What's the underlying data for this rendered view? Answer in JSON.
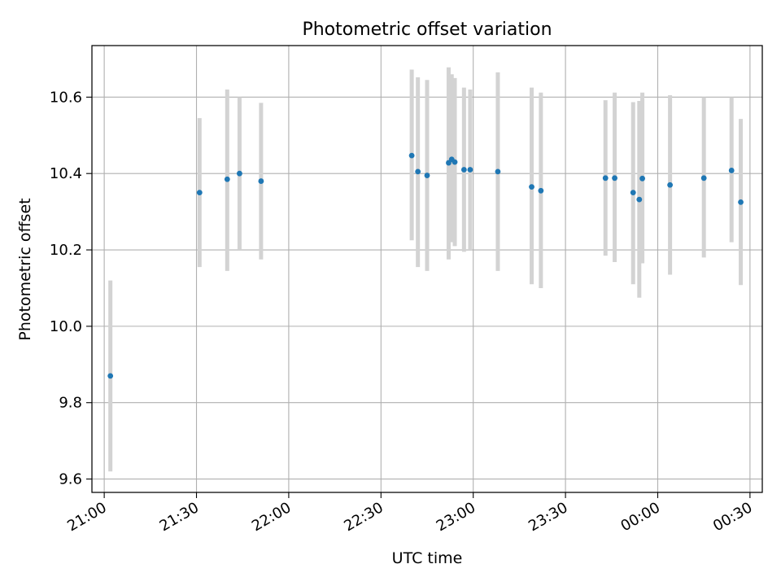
{
  "chart_data": {
    "type": "scatter",
    "title": "Photometric offset variation",
    "xlabel": "UTC time",
    "ylabel": "Photometric offset",
    "x_axis": {
      "kind": "time",
      "range": [
        "20:56",
        "00:34"
      ],
      "ticks": [
        "21:00",
        "21:30",
        "22:00",
        "22:30",
        "23:00",
        "23:30",
        "00:00",
        "00:30"
      ]
    },
    "y_axis": {
      "range": [
        9.565,
        10.735
      ],
      "ticks": [
        9.6,
        9.8,
        10.0,
        10.2,
        10.4,
        10.6
      ],
      "tick_labels": [
        "9.6",
        "9.8",
        "10.0",
        "10.2",
        "10.4",
        "10.6"
      ]
    },
    "grid": true,
    "colors": {
      "point": "#1f77b4",
      "errorbar": "#d3d3d3",
      "grid": "#b0b0b0"
    },
    "series": [
      {
        "points": [
          {
            "time": "21:02",
            "y": 9.87,
            "lo": 9.62,
            "hi": 10.12
          },
          {
            "time": "21:31",
            "y": 10.35,
            "lo": 10.155,
            "hi": 10.545
          },
          {
            "time": "21:40",
            "y": 10.385,
            "lo": 10.145,
            "hi": 10.62
          },
          {
            "time": "21:44",
            "y": 10.4,
            "lo": 10.2,
            "hi": 10.6
          },
          {
            "time": "21:51",
            "y": 10.38,
            "lo": 10.175,
            "hi": 10.585
          },
          {
            "time": "22:40",
            "y": 10.447,
            "lo": 10.225,
            "hi": 10.672
          },
          {
            "time": "22:42",
            "y": 10.405,
            "lo": 10.155,
            "hi": 10.652
          },
          {
            "time": "22:45",
            "y": 10.395,
            "lo": 10.145,
            "hi": 10.645
          },
          {
            "time": "22:52",
            "y": 10.428,
            "lo": 10.175,
            "hi": 10.678
          },
          {
            "time": "22:53",
            "y": 10.437,
            "lo": 10.22,
            "hi": 10.66
          },
          {
            "time": "22:54",
            "y": 10.43,
            "lo": 10.21,
            "hi": 10.65
          },
          {
            "time": "22:57",
            "y": 10.41,
            "lo": 10.195,
            "hi": 10.625
          },
          {
            "time": "22:59",
            "y": 10.41,
            "lo": 10.2,
            "hi": 10.62
          },
          {
            "time": "23:08",
            "y": 10.405,
            "lo": 10.145,
            "hi": 10.665
          },
          {
            "time": "23:19",
            "y": 10.365,
            "lo": 10.11,
            "hi": 10.625
          },
          {
            "time": "23:22",
            "y": 10.355,
            "lo": 10.1,
            "hi": 10.612
          },
          {
            "time": "23:43",
            "y": 10.388,
            "lo": 10.185,
            "hi": 10.592
          },
          {
            "time": "23:46",
            "y": 10.388,
            "lo": 10.168,
            "hi": 10.612
          },
          {
            "time": "23:52",
            "y": 10.35,
            "lo": 10.11,
            "hi": 10.587
          },
          {
            "time": "23:54",
            "y": 10.332,
            "lo": 10.075,
            "hi": 10.59
          },
          {
            "time": "23:55",
            "y": 10.387,
            "lo": 10.165,
            "hi": 10.612
          },
          {
            "time": "00:04",
            "y": 10.37,
            "lo": 10.135,
            "hi": 10.605
          },
          {
            "time": "00:15",
            "y": 10.388,
            "lo": 10.18,
            "hi": 10.6
          },
          {
            "time": "00:24",
            "y": 10.408,
            "lo": 10.22,
            "hi": 10.6
          },
          {
            "time": "00:27",
            "y": 10.325,
            "lo": 10.108,
            "hi": 10.543
          }
        ]
      }
    ]
  }
}
